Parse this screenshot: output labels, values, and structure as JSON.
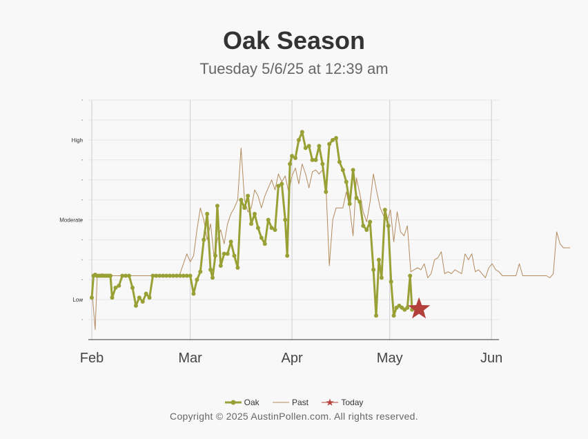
{
  "chart_data": {
    "type": "line",
    "title": "Oak Season",
    "subtitle": "Tuesday 5/6/25 at 12:39 am",
    "xlabel": "",
    "ylabel": "",
    "x_tick_labels": [
      "Feb",
      "Mar",
      "Apr",
      "May",
      "Jun"
    ],
    "y_tick_labels": [
      "Low",
      "Moderate",
      "High"
    ],
    "ylim": [
      0,
      12
    ],
    "grid": true,
    "legend_position": "bottom",
    "series": [
      {
        "name": "Oak",
        "color": "#99a035",
        "points": [
          [
            0.0,
            2.1
          ],
          [
            0.25,
            3.2
          ],
          [
            0.5,
            3.25
          ],
          [
            0.75,
            3.2
          ],
          [
            1.0,
            3.2
          ],
          [
            1.25,
            3.2
          ],
          [
            1.5,
            3.2
          ],
          [
            1.75,
            3.2
          ],
          [
            2.0,
            3.2
          ],
          [
            2.25,
            3.2
          ],
          [
            2.5,
            3.2
          ],
          [
            2.75,
            3.2
          ],
          [
            3.0,
            2.1
          ],
          [
            3.5,
            2.6
          ],
          [
            4.0,
            2.7
          ],
          [
            4.5,
            3.2
          ],
          [
            5.0,
            3.2
          ],
          [
            5.5,
            3.2
          ],
          [
            6.0,
            2.6
          ],
          [
            6.5,
            1.7
          ],
          [
            7.0,
            2.1
          ],
          [
            7.5,
            1.9
          ],
          [
            8.0,
            2.3
          ],
          [
            8.5,
            2.1
          ],
          [
            9.0,
            3.2
          ],
          [
            9.5,
            3.2
          ],
          [
            10.0,
            3.2
          ],
          [
            10.5,
            3.2
          ],
          [
            11.0,
            3.2
          ],
          [
            11.5,
            3.2
          ],
          [
            12.0,
            3.2
          ],
          [
            12.5,
            3.2
          ],
          [
            13.0,
            3.2
          ],
          [
            13.5,
            3.2
          ],
          [
            14.0,
            3.2
          ],
          [
            14.5,
            3.2
          ],
          [
            15.0,
            2.3
          ],
          [
            15.5,
            3.0
          ],
          [
            16.0,
            3.4
          ],
          [
            16.5,
            5.0
          ],
          [
            17.0,
            6.3
          ],
          [
            17.5,
            3.5
          ],
          [
            17.8,
            3.1
          ],
          [
            18.2,
            4.2
          ],
          [
            18.5,
            6.7
          ],
          [
            19.0,
            3.7
          ],
          [
            19.5,
            4.3
          ],
          [
            20.0,
            4.3
          ],
          [
            20.5,
            4.9
          ],
          [
            21.0,
            4.2
          ],
          [
            21.5,
            3.6
          ],
          [
            22.0,
            7.0
          ],
          [
            22.5,
            6.6
          ],
          [
            23.0,
            7.2
          ],
          [
            23.5,
            5.8
          ],
          [
            24.0,
            6.3
          ],
          [
            24.5,
            5.6
          ],
          [
            25.0,
            5.1
          ],
          [
            25.5,
            4.8
          ],
          [
            26.0,
            6.0
          ],
          [
            26.5,
            5.6
          ],
          [
            27.0,
            5.5
          ],
          [
            27.5,
            7.7
          ],
          [
            28.0,
            7.8
          ],
          [
            28.5,
            6.0
          ],
          [
            28.8,
            4.2
          ],
          [
            29.2,
            8.8
          ],
          [
            29.5,
            9.2
          ],
          [
            30.0,
            9.1
          ],
          [
            30.5,
            10.0
          ],
          [
            31.0,
            10.4
          ],
          [
            31.5,
            9.6
          ],
          [
            32.0,
            9.7
          ],
          [
            32.5,
            9.0
          ],
          [
            33.0,
            9.0
          ],
          [
            33.5,
            9.7
          ],
          [
            34.0,
            8.8
          ],
          [
            34.5,
            7.4
          ],
          [
            35.0,
            9.8
          ],
          [
            35.5,
            10.0
          ],
          [
            36.0,
            10.1
          ],
          [
            36.5,
            8.9
          ],
          [
            37.0,
            8.5
          ],
          [
            37.5,
            7.9
          ],
          [
            38.0,
            6.8
          ],
          [
            38.5,
            8.5
          ],
          [
            39.0,
            7.1
          ],
          [
            39.5,
            6.9
          ],
          [
            40.0,
            5.7
          ],
          [
            40.5,
            5.5
          ],
          [
            41.0,
            5.9
          ],
          [
            41.5,
            3.5
          ],
          [
            41.9,
            1.2
          ],
          [
            42.3,
            4.0
          ],
          [
            42.7,
            3.1
          ],
          [
            43.2,
            6.5
          ],
          [
            43.7,
            5.7
          ],
          [
            44.1,
            2.9
          ],
          [
            44.5,
            1.2
          ],
          [
            44.9,
            1.6
          ],
          [
            45.3,
            1.7
          ],
          [
            45.7,
            1.6
          ],
          [
            46.1,
            1.5
          ],
          [
            46.5,
            1.6
          ],
          [
            46.9,
            3.2
          ],
          [
            47.2,
            1.5
          ]
        ]
      },
      {
        "name": "Past",
        "color": "#b38a5d",
        "points": [
          [
            0.0,
            2.6
          ],
          [
            0.5,
            0.5
          ],
          [
            0.8,
            3.2
          ],
          [
            1.5,
            3.3
          ],
          [
            2.5,
            3.2
          ],
          [
            3.5,
            3.2
          ],
          [
            4.5,
            3.2
          ],
          [
            5.5,
            3.2
          ],
          [
            6.5,
            3.2
          ],
          [
            7.5,
            3.2
          ],
          [
            8.5,
            3.2
          ],
          [
            9.5,
            3.2
          ],
          [
            10.5,
            3.2
          ],
          [
            11.5,
            3.2
          ],
          [
            12.5,
            3.2
          ],
          [
            13.0,
            3.3
          ],
          [
            13.5,
            3.8
          ],
          [
            14.0,
            4.3
          ],
          [
            14.5,
            3.9
          ],
          [
            15.0,
            4.2
          ],
          [
            15.5,
            5.5
          ],
          [
            16.0,
            6.6
          ],
          [
            16.5,
            6.0
          ],
          [
            17.0,
            5.0
          ],
          [
            17.5,
            5.8
          ],
          [
            18.0,
            4.2
          ],
          [
            18.5,
            5.0
          ],
          [
            19.0,
            5.5
          ],
          [
            19.5,
            4.8
          ],
          [
            20.0,
            5.8
          ],
          [
            20.5,
            6.3
          ],
          [
            21.0,
            6.6
          ],
          [
            21.5,
            7.0
          ],
          [
            22.0,
            9.6
          ],
          [
            22.5,
            7.0
          ],
          [
            23.0,
            6.4
          ],
          [
            23.5,
            6.6
          ],
          [
            24.0,
            7.5
          ],
          [
            24.5,
            7.2
          ],
          [
            25.0,
            6.6
          ],
          [
            25.5,
            7.2
          ],
          [
            26.0,
            7.6
          ],
          [
            26.5,
            8.0
          ],
          [
            27.0,
            7.5
          ],
          [
            27.5,
            8.3
          ],
          [
            28.0,
            7.9
          ],
          [
            28.5,
            8.2
          ],
          [
            29.0,
            7.4
          ],
          [
            29.5,
            8.2
          ],
          [
            30.0,
            8.6
          ],
          [
            30.5,
            7.8
          ],
          [
            31.0,
            8.8
          ],
          [
            31.5,
            8.3
          ],
          [
            32.0,
            7.6
          ],
          [
            32.5,
            8.4
          ],
          [
            33.0,
            8.5
          ],
          [
            33.5,
            8.3
          ],
          [
            34.0,
            8.5
          ],
          [
            34.5,
            7.7
          ],
          [
            35.0,
            3.7
          ],
          [
            35.5,
            6.0
          ],
          [
            36.0,
            6.6
          ],
          [
            36.5,
            6.6
          ],
          [
            37.0,
            6.6
          ],
          [
            37.5,
            7.4
          ],
          [
            38.0,
            6.6
          ],
          [
            38.5,
            5.2
          ],
          [
            39.0,
            8.1
          ],
          [
            39.5,
            7.3
          ],
          [
            40.0,
            6.4
          ],
          [
            40.5,
            5.9
          ],
          [
            41.0,
            6.9
          ],
          [
            41.5,
            8.3
          ],
          [
            42.0,
            7.4
          ],
          [
            42.5,
            6.6
          ],
          [
            43.0,
            6.2
          ],
          [
            43.5,
            5.9
          ],
          [
            44.0,
            6.5
          ],
          [
            44.5,
            4.9
          ],
          [
            45.0,
            6.4
          ],
          [
            45.5,
            5.4
          ],
          [
            46.0,
            5.2
          ],
          [
            46.5,
            5.7
          ],
          [
            47.0,
            3.4
          ],
          [
            47.5,
            3.5
          ],
          [
            48.0,
            3.6
          ],
          [
            48.5,
            3.5
          ],
          [
            49.0,
            3.8
          ],
          [
            49.5,
            3.1
          ],
          [
            50.0,
            3.3
          ],
          [
            50.5,
            4.0
          ],
          [
            51.0,
            4.1
          ],
          [
            51.5,
            4.4
          ],
          [
            52.0,
            3.3
          ],
          [
            52.5,
            3.4
          ],
          [
            53.0,
            3.3
          ],
          [
            53.5,
            3.5
          ],
          [
            54.0,
            3.4
          ],
          [
            54.5,
            3.3
          ],
          [
            55.0,
            4.3
          ],
          [
            55.5,
            4.0
          ],
          [
            56.0,
            4.3
          ],
          [
            56.5,
            3.4
          ],
          [
            57.0,
            3.5
          ],
          [
            57.5,
            3.3
          ],
          [
            58.0,
            3.1
          ],
          [
            58.5,
            3.6
          ],
          [
            59.0,
            3.8
          ],
          [
            59.5,
            3.5
          ],
          [
            60.0,
            3.4
          ],
          [
            60.5,
            3.2
          ],
          [
            61.0,
            3.2
          ],
          [
            61.5,
            3.2
          ],
          [
            62.0,
            3.2
          ],
          [
            62.5,
            3.2
          ],
          [
            63.0,
            3.8
          ],
          [
            63.5,
            3.2
          ],
          [
            64.0,
            3.2
          ],
          [
            64.5,
            3.2
          ],
          [
            65.0,
            3.2
          ],
          [
            65.5,
            3.2
          ],
          [
            66.0,
            3.2
          ],
          [
            66.5,
            3.2
          ],
          [
            67.0,
            3.2
          ],
          [
            67.5,
            3.1
          ],
          [
            68.0,
            3.3
          ],
          [
            68.5,
            5.4
          ],
          [
            69.0,
            4.8
          ],
          [
            69.5,
            4.6
          ],
          [
            70.0,
            4.6
          ],
          [
            70.5,
            4.6
          ]
        ]
      },
      {
        "name": "Today",
        "color": "#b3403a",
        "points": [
          [
            47.2,
            1.5
          ]
        ]
      }
    ]
  },
  "legend": {
    "oak": "Oak",
    "past": "Past",
    "today": "Today"
  },
  "footer": {
    "copyright": "Copyright © 2025 AustinPollen.com.  All rights reserved."
  }
}
